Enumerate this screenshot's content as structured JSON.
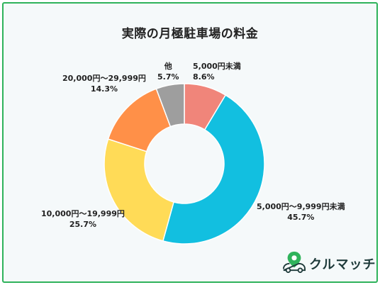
{
  "chart_data": {
    "type": "pie",
    "title": "実際の月極駐車場の料金",
    "donut": true,
    "slices": [
      {
        "label": "5,000円未満",
        "value": 8.6,
        "pct_text": "8.6%",
        "color": "#f0857a"
      },
      {
        "label": "5,000円〜9,999円未満",
        "value": 45.7,
        "pct_text": "45.7%",
        "color": "#12bfe0"
      },
      {
        "label": "10,000円〜19,999円",
        "value": 25.7,
        "pct_text": "25.7%",
        "color": "#ffdb57"
      },
      {
        "label": "20,000円〜29,999円",
        "value": 14.3,
        "pct_text": "14.3%",
        "color": "#ff9048"
      },
      {
        "label": "他",
        "value": 5.7,
        "pct_text": "5.7%",
        "color": "#9e9e9e"
      }
    ]
  },
  "brand": {
    "name": "クルマッチ",
    "icon": "car-location-pin-icon",
    "color": "#2fb35b"
  }
}
